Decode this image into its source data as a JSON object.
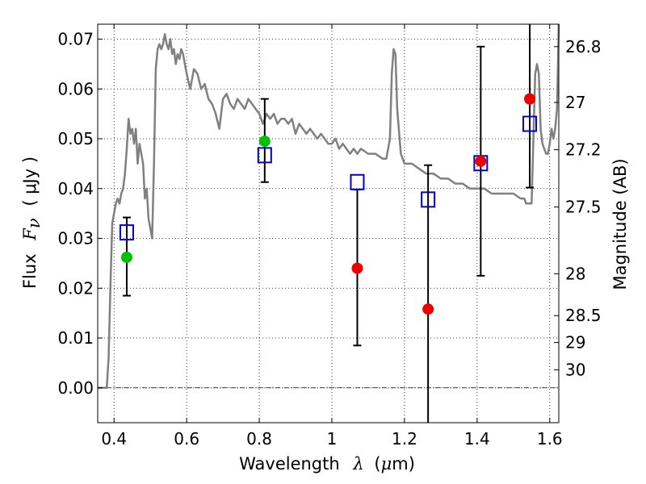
{
  "chart_data": {
    "type": "scatter",
    "title": "",
    "xlabel": {
      "prefix": "Wavelength",
      "symbol": "λ",
      "unit_open": "(",
      "unit_mu": "μ",
      "unit_rest": "m)"
    },
    "ylabel": {
      "prefix": "Flux",
      "symbol": "F",
      "subscript": "ν",
      "unit": "( μJy )"
    },
    "y2label": "Magnitude (AB)",
    "xlim": [
      0.355,
      1.625
    ],
    "ylim": [
      -0.007,
      0.073
    ],
    "x_ticks": [
      0.4,
      0.6,
      0.8,
      1.0,
      1.2,
      1.4,
      1.6
    ],
    "x_tick_labels": [
      "0.4",
      "0.6",
      "0.8",
      "1",
      "1.2",
      "1.4",
      "1.6"
    ],
    "y_ticks": [
      0.0,
      0.01,
      0.02,
      0.03,
      0.04,
      0.05,
      0.06,
      0.07
    ],
    "y_tick_labels": [
      "0.00",
      "0.01",
      "0.02",
      "0.03",
      "0.04",
      "0.05",
      "0.06",
      "0.07"
    ],
    "y2_ticks": [
      {
        "label": "26.8",
        "flux": 0.0685
      },
      {
        "label": "27",
        "flux": 0.0573
      },
      {
        "label": "27.2",
        "flux": 0.0478
      },
      {
        "label": "27.5",
        "flux": 0.0363
      },
      {
        "label": "28",
        "flux": 0.0229
      },
      {
        "label": "28.5",
        "flux": 0.0145
      },
      {
        "label": "29",
        "flux": 0.0091
      },
      {
        "label": "30",
        "flux": 0.0036
      }
    ],
    "grid": true,
    "colors": {
      "model": "#808080",
      "detection": "#00c000",
      "nondetection": "#ee0000",
      "model_flux": "#0000cc",
      "errorbar": "#000000"
    },
    "model_spectrum": {
      "x": [
        0.355,
        0.38,
        0.385,
        0.39,
        0.395,
        0.4,
        0.405,
        0.41,
        0.415,
        0.42,
        0.425,
        0.43,
        0.435,
        0.44,
        0.445,
        0.45,
        0.455,
        0.46,
        0.465,
        0.47,
        0.475,
        0.48,
        0.485,
        0.49,
        0.495,
        0.5,
        0.505,
        0.51,
        0.515,
        0.52,
        0.525,
        0.53,
        0.535,
        0.54,
        0.545,
        0.55,
        0.555,
        0.56,
        0.565,
        0.57,
        0.575,
        0.58,
        0.585,
        0.59,
        0.6,
        0.61,
        0.62,
        0.63,
        0.64,
        0.65,
        0.66,
        0.67,
        0.68,
        0.69,
        0.7,
        0.71,
        0.72,
        0.73,
        0.74,
        0.75,
        0.76,
        0.77,
        0.78,
        0.79,
        0.8,
        0.81,
        0.82,
        0.83,
        0.84,
        0.85,
        0.86,
        0.87,
        0.88,
        0.89,
        0.9,
        0.91,
        0.92,
        0.93,
        0.94,
        0.95,
        0.96,
        0.97,
        0.98,
        0.99,
        1.0,
        1.01,
        1.02,
        1.03,
        1.04,
        1.05,
        1.06,
        1.07,
        1.08,
        1.1,
        1.12,
        1.14,
        1.15,
        1.16,
        1.165,
        1.17,
        1.175,
        1.18,
        1.19,
        1.2,
        1.22,
        1.24,
        1.26,
        1.28,
        1.3,
        1.32,
        1.34,
        1.36,
        1.38,
        1.4,
        1.42,
        1.44,
        1.46,
        1.48,
        1.5,
        1.52,
        1.53,
        1.535,
        1.54,
        1.545,
        1.55,
        1.56,
        1.565,
        1.57,
        1.575,
        1.58,
        1.585,
        1.59,
        1.595,
        1.6,
        1.605,
        1.61,
        1.615,
        1.62,
        1.625
      ],
      "y": [
        0.0,
        0.0,
        0.006,
        0.02,
        0.033,
        0.035,
        0.037,
        0.038,
        0.037,
        0.039,
        0.04,
        0.043,
        0.048,
        0.054,
        0.051,
        0.052,
        0.049,
        0.052,
        0.045,
        0.049,
        0.047,
        0.045,
        0.038,
        0.04,
        0.034,
        0.032,
        0.03,
        0.045,
        0.064,
        0.068,
        0.069,
        0.068,
        0.069,
        0.071,
        0.069,
        0.068,
        0.07,
        0.067,
        0.068,
        0.065,
        0.067,
        0.066,
        0.068,
        0.067,
        0.063,
        0.06,
        0.064,
        0.063,
        0.06,
        0.061,
        0.058,
        0.057,
        0.055,
        0.052,
        0.058,
        0.059,
        0.057,
        0.056,
        0.058,
        0.057,
        0.056,
        0.058,
        0.057,
        0.056,
        0.055,
        0.053,
        0.055,
        0.054,
        0.055,
        0.053,
        0.054,
        0.054,
        0.053,
        0.054,
        0.051,
        0.053,
        0.052,
        0.051,
        0.052,
        0.051,
        0.05,
        0.051,
        0.05,
        0.049,
        0.049,
        0.05,
        0.048,
        0.049,
        0.048,
        0.047,
        0.048,
        0.047,
        0.048,
        0.047,
        0.047,
        0.046,
        0.046,
        0.05,
        0.063,
        0.068,
        0.067,
        0.056,
        0.047,
        0.045,
        0.045,
        0.044,
        0.043,
        0.043,
        0.042,
        0.042,
        0.041,
        0.041,
        0.04,
        0.04,
        0.04,
        0.039,
        0.039,
        0.039,
        0.039,
        0.038,
        0.038,
        0.037,
        0.037,
        0.037,
        0.037,
        0.063,
        0.065,
        0.063,
        0.052,
        0.049,
        0.048,
        0.047,
        0.047,
        0.049,
        0.052,
        0.05,
        0.052,
        0.056,
        0.073
      ]
    },
    "model_flux": {
      "x": [
        0.435,
        0.815,
        1.07,
        1.265,
        1.41,
        1.545
      ],
      "y": [
        0.0312,
        0.0467,
        0.0413,
        0.0378,
        0.0451,
        0.053
      ]
    },
    "detections": {
      "x": [
        0.435,
        0.815
      ],
      "y": [
        0.0262,
        0.0495
      ]
    },
    "nondetections": {
      "x": [
        1.07,
        1.265,
        1.41,
        1.545
      ],
      "y": [
        0.024,
        0.0158,
        0.0455,
        0.058
      ]
    },
    "errorbars": [
      {
        "x": 0.435,
        "low": 0.0185,
        "high": 0.0342
      },
      {
        "x": 0.815,
        "low": 0.0413,
        "high": 0.058
      },
      {
        "x": 1.07,
        "low": 0.0085,
        "high": 0.0398
      },
      {
        "x": 1.265,
        "low": -0.007,
        "high": 0.0447
      },
      {
        "x": 1.41,
        "low": 0.0225,
        "high": 0.0685
      },
      {
        "x": 1.545,
        "low": 0.0402,
        "high": 0.073
      }
    ],
    "zero_line": 0.0
  }
}
